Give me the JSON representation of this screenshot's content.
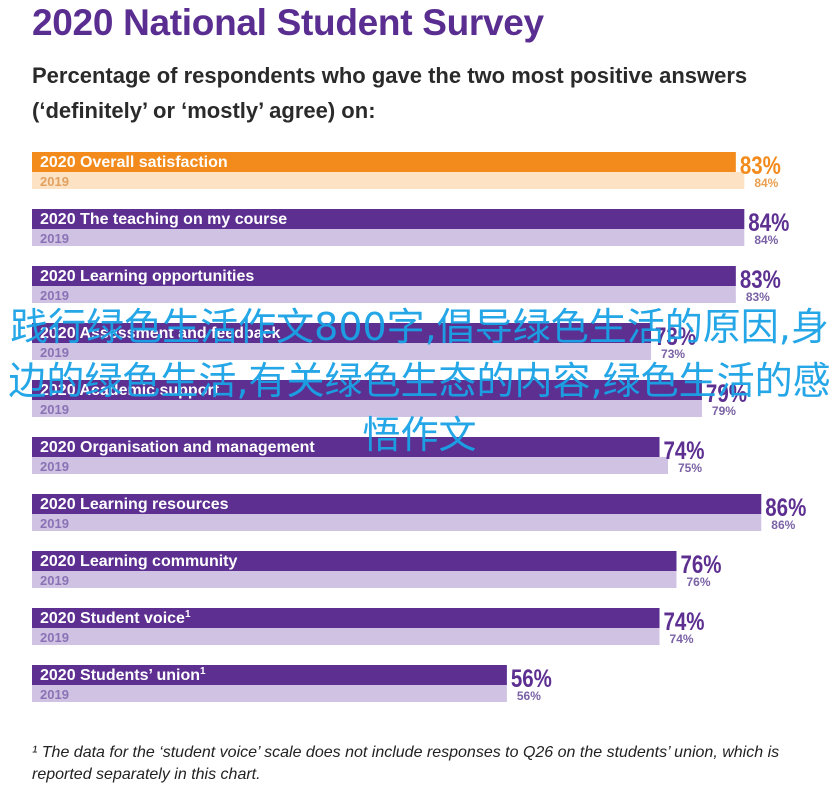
{
  "header": {
    "title": "2020 National Student Survey",
    "subtitle": "Percentage of respondents who gave the two most positive answers (‘definitely’ or ‘mostly’ agree) on:"
  },
  "colors": {
    "orange_main": "#f28b1c",
    "orange_light": "#fde3c4",
    "purple_main": "#5c2f91",
    "purple_light": "#cfc2e3",
    "orange_label": "#f28b1c",
    "purple_label": "#5c2f91"
  },
  "chart_data": {
    "type": "bar",
    "orientation": "horizontal",
    "title": "2020 National Student Survey",
    "xlim": [
      0,
      100
    ],
    "series": [
      {
        "name": "2020",
        "values": [
          83,
          84,
          83,
          73,
          79,
          74,
          86,
          76,
          74,
          56
        ]
      },
      {
        "name": "2019",
        "values": [
          84,
          84,
          83,
          73,
          79,
          75,
          86,
          76,
          74,
          56
        ]
      }
    ],
    "categories": [
      "Overall satisfaction",
      "The teaching on my course",
      "Learning opportunities",
      "Assessment and feedback",
      "Academic support",
      "Organisation and management",
      "Learning resources",
      "Learning community",
      "Student voice",
      "Students’ union"
    ],
    "value_labels_2020": [
      "83%",
      "84%",
      "83%",
      "73%",
      "79%",
      "74%",
      "86%",
      "76%",
      "74%",
      "56%"
    ],
    "value_labels_2019": [
      "84%",
      "84%",
      "83%",
      "73%",
      "79%",
      "75%",
      "86%",
      "76%",
      "74%",
      "56%"
    ],
    "footnote_marks": [
      "",
      "",
      "",
      "",
      "",
      "",
      "",
      "",
      "1",
      "1"
    ],
    "year_labels": {
      "current": "2020",
      "previous": "2019"
    }
  },
  "footnote": "¹ The data for the ‘student voice’ scale does not include responses to Q26 on the students’ union, which is reported separately in this chart.",
  "watermark": "践行绿色生活作文800字,倡导绿色生活的原因,身边的绿色生活,有关绿色生态的内容,绿色生活的感悟作文"
}
